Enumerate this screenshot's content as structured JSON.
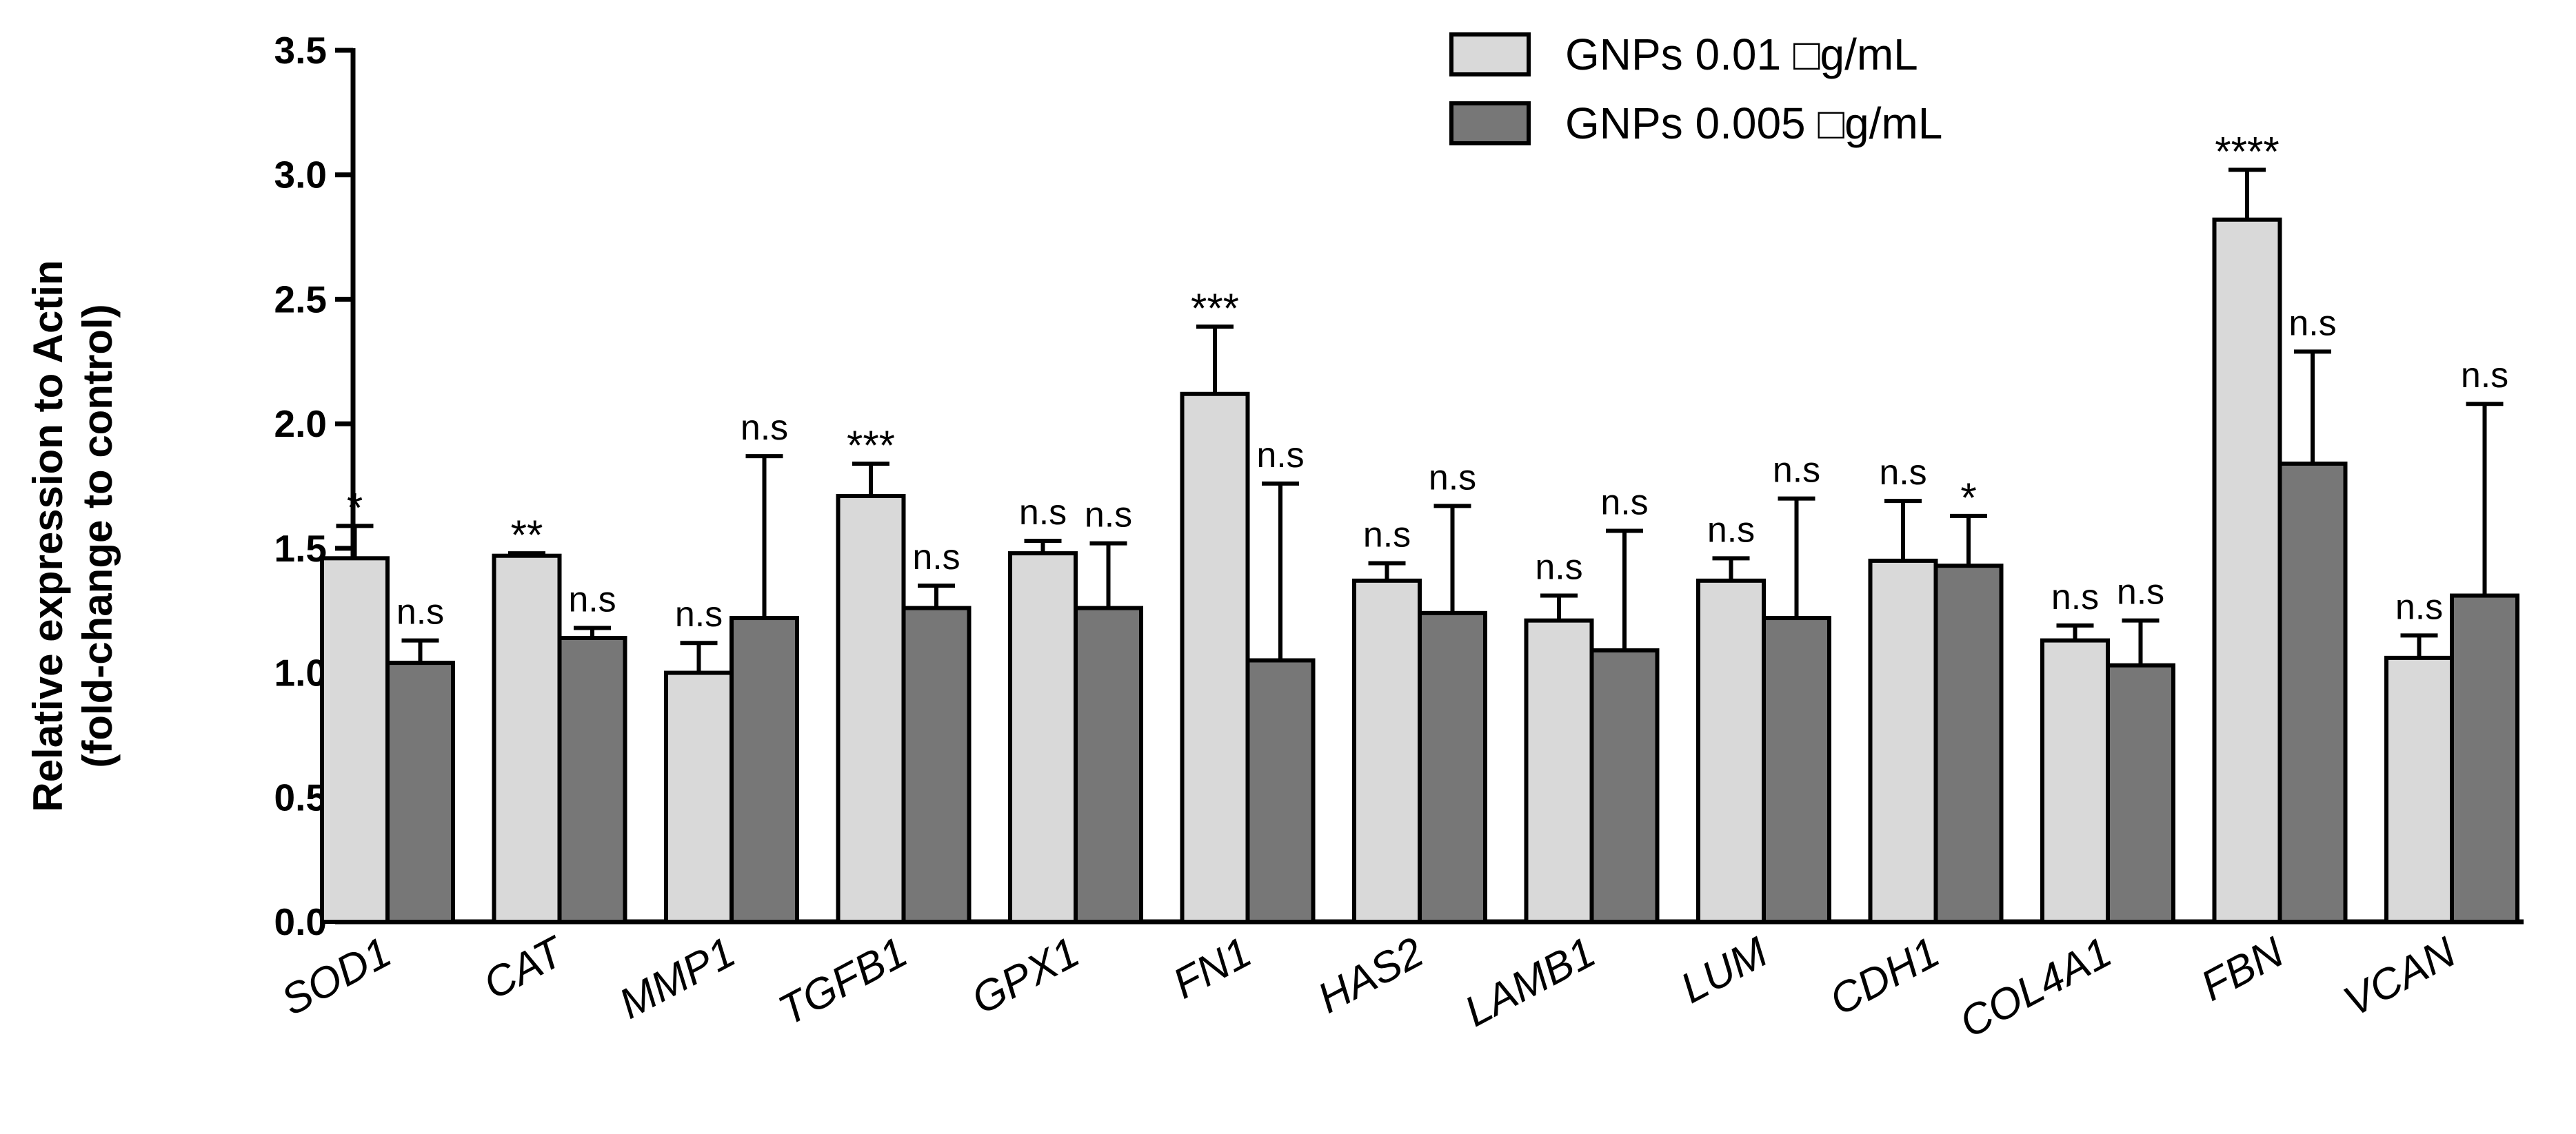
{
  "chart_data": {
    "type": "bar",
    "title": "",
    "xlabel": "",
    "ylabel": [
      "Relative expression to Actin",
      "(fold-change to control)"
    ],
    "ylim": [
      0,
      3.5
    ],
    "yticks": [
      "0.0",
      "0.5",
      "1.0",
      "1.5",
      "2.0",
      "2.5",
      "3.0",
      "3.5"
    ],
    "legend_position": "top-center",
    "categories": [
      "SOD1",
      "CAT",
      "MMP1",
      "TGFB1",
      "GPX1",
      "FN1",
      "HAS2",
      "LAMB1",
      "LUM",
      "CDH1",
      "COL4A1",
      "FBN",
      "VCAN"
    ],
    "series": [
      {
        "name": "GNPs 0.01 □g/mL",
        "color": "#d9d9d9",
        "values": [
          1.46,
          1.47,
          1.0,
          1.71,
          1.48,
          2.12,
          1.37,
          1.21,
          1.37,
          1.45,
          1.13,
          2.82,
          1.06
        ],
        "errors": [
          0.13,
          0.01,
          0.12,
          0.13,
          0.05,
          0.27,
          0.07,
          0.1,
          0.09,
          0.24,
          0.06,
          0.2,
          0.09
        ],
        "significance": [
          "*",
          "**",
          "n.s",
          "***",
          "n.s",
          "***",
          "n.s",
          "n.s",
          "n.s",
          "n.s",
          "n.s",
          "****",
          "n.s"
        ]
      },
      {
        "name": "GNPs 0.005 □g/mL",
        "color": "#777777",
        "values": [
          1.04,
          1.14,
          1.22,
          1.26,
          1.26,
          1.05,
          1.24,
          1.09,
          1.22,
          1.43,
          1.03,
          1.84,
          1.31
        ],
        "errors": [
          0.09,
          0.04,
          0.65,
          0.09,
          0.26,
          0.71,
          0.43,
          0.48,
          0.48,
          0.2,
          0.18,
          0.45,
          0.77
        ],
        "significance": [
          "n.s",
          "n.s",
          "n.s",
          "n.s",
          "n.s",
          "n.s",
          "n.s",
          "n.s",
          "n.s",
          "*",
          "n.s",
          "n.s",
          "n.s"
        ]
      }
    ]
  }
}
